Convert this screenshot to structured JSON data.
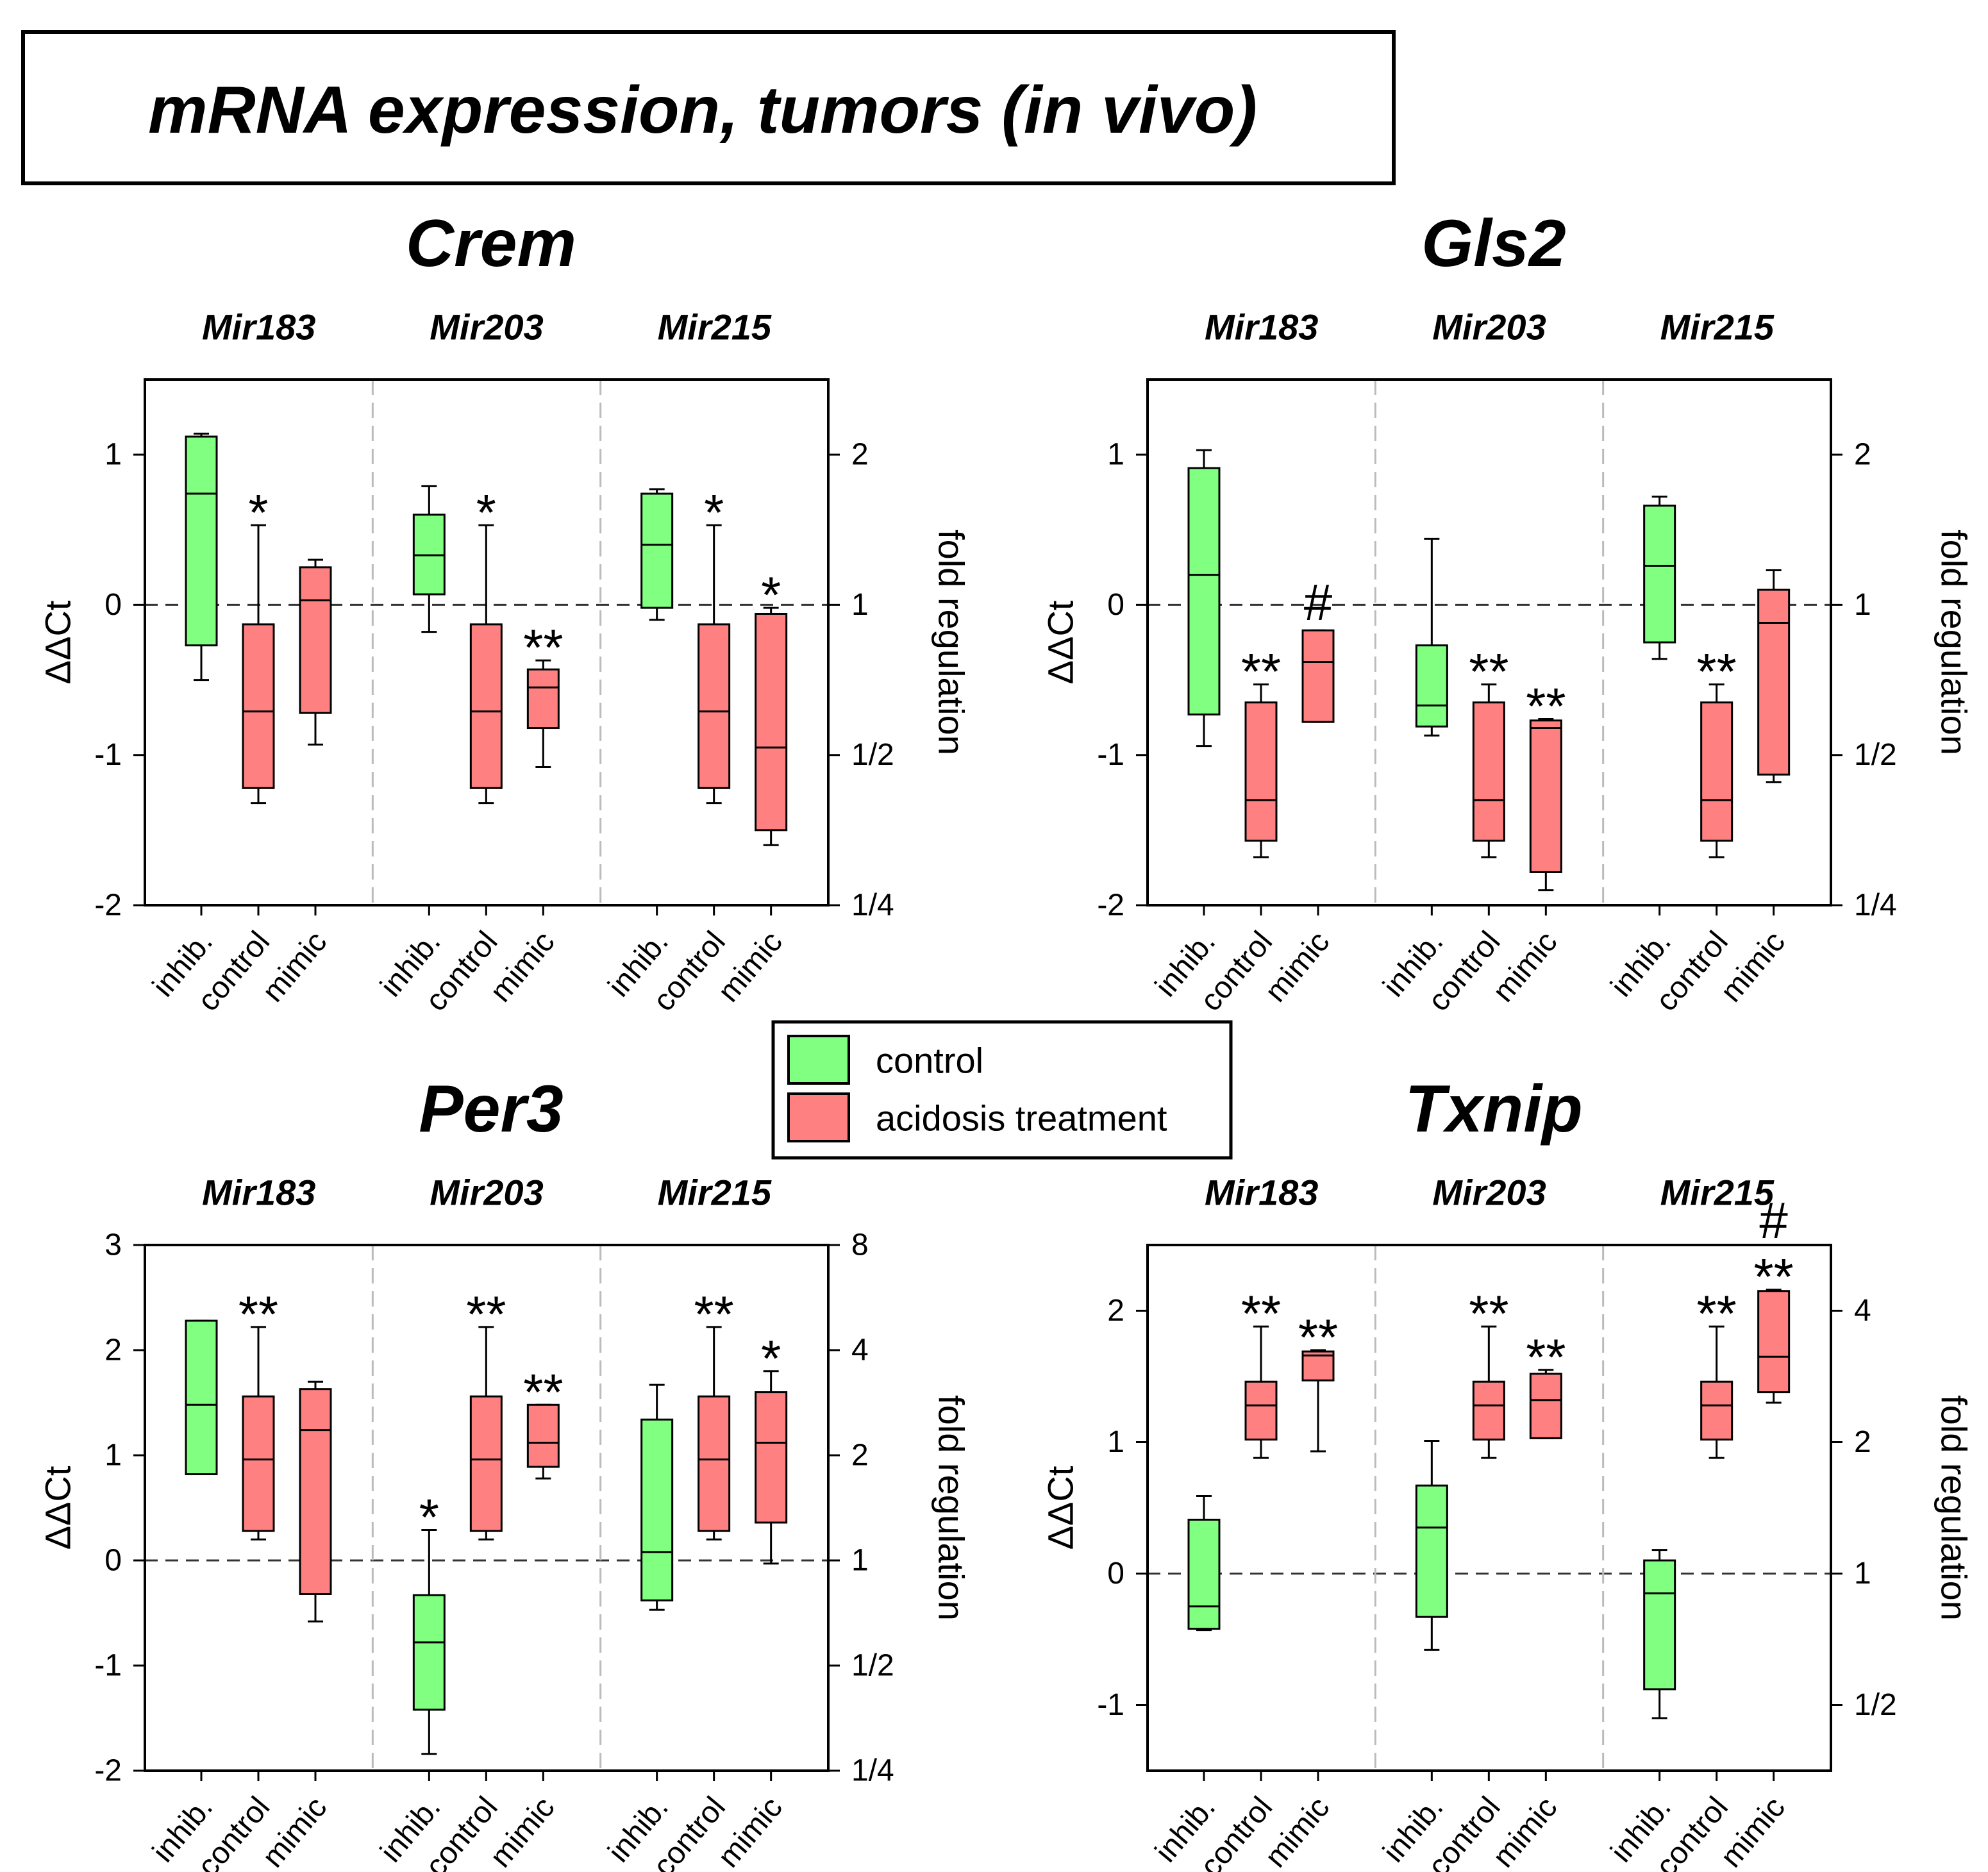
{
  "title": "mRNA expression, tumors (in vivo)",
  "legend": [
    {
      "name": "control",
      "color": "#80ff80"
    },
    {
      "name": "acidosis treatment",
      "color": "#ff8080"
    }
  ],
  "chart_data": [
    {
      "type": "box",
      "title": "Crem",
      "ylabel": "ΔΔCt",
      "y2label": "fold regulation",
      "ylim": [
        -2,
        1.5
      ],
      "yticks": [
        -2,
        -1,
        0,
        1
      ],
      "y2log": true,
      "y2lim": [
        0.25,
        2.828
      ],
      "y2ticks": [
        {
          "value": 0.25,
          "label": "1/4"
        },
        {
          "value": 0.5,
          "label": "1/2"
        },
        1,
        2
      ],
      "groups": [
        {
          "name": "Mir183",
          "categories": [
            "inhib.",
            "control",
            "mimic"
          ],
          "boxes": [
            {
              "series": 0,
              "whishi": 1.14,
              "q3": 1.12,
              "median": 0.74,
              "q1": -0.27,
              "whislo": -0.5
            },
            {
              "series": 1,
              "whishi": 0.53,
              "q3": -0.13,
              "median": -0.71,
              "q1": -1.22,
              "whislo": -1.32,
              "annotations": [
                "*"
              ]
            },
            {
              "series": 1,
              "whishi": 0.3,
              "q3": 0.25,
              "median": 0.03,
              "q1": -0.72,
              "whislo": -0.93
            }
          ]
        },
        {
          "name": "Mir203",
          "categories": [
            "inhib.",
            "control",
            "mimic"
          ],
          "boxes": [
            {
              "series": 0,
              "whishi": 0.79,
              "q3": 0.6,
              "median": 0.33,
              "q1": 0.07,
              "whislo": -0.18
            },
            {
              "series": 1,
              "whishi": 0.53,
              "q3": -0.13,
              "median": -0.71,
              "q1": -1.22,
              "whislo": -1.32,
              "annotations": [
                "*"
              ]
            },
            {
              "series": 1,
              "whishi": -0.37,
              "q3": -0.43,
              "median": -0.55,
              "q1": -0.82,
              "whislo": -1.08,
              "annotations": [
                "**"
              ]
            }
          ]
        },
        {
          "name": "Mir215",
          "categories": [
            "inhib.",
            "control",
            "mimic"
          ],
          "boxes": [
            {
              "series": 0,
              "whishi": 0.77,
              "q3": 0.74,
              "median": 0.4,
              "q1": -0.02,
              "whislo": -0.1
            },
            {
              "series": 1,
              "whishi": 0.53,
              "q3": -0.13,
              "median": -0.71,
              "q1": -1.22,
              "whislo": -1.32,
              "annotations": [
                "*"
              ]
            },
            {
              "series": 1,
              "whishi": -0.02,
              "q3": -0.06,
              "median": -0.95,
              "q1": -1.5,
              "whislo": -1.6,
              "annotations": [
                "*"
              ]
            }
          ]
        }
      ]
    },
    {
      "type": "box",
      "title": "Gls2",
      "ylabel": "ΔΔCt",
      "y2label": "fold regulation",
      "ylim": [
        -2,
        1.5
      ],
      "yticks": [
        -2,
        -1,
        0,
        1
      ],
      "y2log": true,
      "y2lim": [
        0.25,
        2.828
      ],
      "y2ticks": [
        {
          "value": 0.25,
          "label": "1/4"
        },
        {
          "value": 0.5,
          "label": "1/2"
        },
        1,
        2
      ],
      "groups": [
        {
          "name": "Mir183",
          "categories": [
            "inhib.",
            "control",
            "mimic"
          ],
          "boxes": [
            {
              "series": 0,
              "whishi": 1.03,
              "q3": 0.91,
              "median": 0.2,
              "q1": -0.73,
              "whislo": -0.94
            },
            {
              "series": 1,
              "whishi": -0.53,
              "q3": -0.65,
              "median": -1.3,
              "q1": -1.57,
              "whislo": -1.68,
              "annotations": [
                "**"
              ]
            },
            {
              "series": 1,
              "whishi": -0.17,
              "q3": -0.17,
              "median": -0.38,
              "q1": -0.78,
              "whislo": -0.78,
              "annotations": [
                "#"
              ]
            }
          ]
        },
        {
          "name": "Mir203",
          "categories": [
            "inhib.",
            "control",
            "mimic"
          ],
          "boxes": [
            {
              "series": 0,
              "whishi": 0.44,
              "q3": -0.27,
              "median": -0.67,
              "q1": -0.81,
              "whislo": -0.87
            },
            {
              "series": 1,
              "whishi": -0.53,
              "q3": -0.65,
              "median": -1.3,
              "q1": -1.57,
              "whislo": -1.68,
              "annotations": [
                "**"
              ]
            },
            {
              "series": 1,
              "whishi": -0.76,
              "q3": -0.77,
              "median": -0.82,
              "q1": -1.78,
              "whislo": -1.9,
              "annotations": [
                "**"
              ]
            }
          ]
        },
        {
          "name": "Mir215",
          "categories": [
            "inhib.",
            "control",
            "mimic"
          ],
          "boxes": [
            {
              "series": 0,
              "whishi": 0.72,
              "q3": 0.66,
              "median": 0.26,
              "q1": -0.25,
              "whislo": -0.36
            },
            {
              "series": 1,
              "whishi": -0.53,
              "q3": -0.65,
              "median": -1.3,
              "q1": -1.57,
              "whislo": -1.68,
              "annotations": [
                "**"
              ]
            },
            {
              "series": 1,
              "whishi": 0.23,
              "q3": 0.1,
              "median": -0.12,
              "q1": -1.13,
              "whislo": -1.18
            }
          ]
        }
      ]
    },
    {
      "type": "box",
      "title": "Per3",
      "ylabel": "ΔΔCt",
      "y2label": "fold regulation",
      "ylim": [
        -2,
        3
      ],
      "yticks": [
        -2,
        -1,
        0,
        1,
        2,
        3
      ],
      "y2log": true,
      "y2lim": [
        0.25,
        8
      ],
      "y2ticks": [
        {
          "value": 0.25,
          "label": "1/4"
        },
        {
          "value": 0.5,
          "label": "1/2"
        },
        1,
        2,
        4,
        8
      ],
      "groups": [
        {
          "name": "Mir183",
          "categories": [
            "inhib.",
            "control",
            "mimic"
          ],
          "boxes": [
            {
              "series": 0,
              "whishi": 2.28,
              "q3": 2.28,
              "median": 1.48,
              "q1": 0.82,
              "whislo": 0.82
            },
            {
              "series": 1,
              "whishi": 2.22,
              "q3": 1.56,
              "median": 0.96,
              "q1": 0.28,
              "whislo": 0.2,
              "annotations": [
                "**"
              ]
            },
            {
              "series": 1,
              "whishi": 1.7,
              "q3": 1.63,
              "median": 1.24,
              "q1": -0.32,
              "whislo": -0.58
            }
          ]
        },
        {
          "name": "Mir203",
          "categories": [
            "inhib.",
            "control",
            "mimic"
          ],
          "boxes": [
            {
              "series": 0,
              "whishi": 0.29,
              "q3": -0.33,
              "median": -0.78,
              "q1": -1.42,
              "whislo": -1.84,
              "annotations": [
                "*"
              ]
            },
            {
              "series": 1,
              "whishi": 2.22,
              "q3": 1.56,
              "median": 0.96,
              "q1": 0.28,
              "whislo": 0.2,
              "annotations": [
                "**"
              ]
            },
            {
              "series": 1,
              "whishi": 1.48,
              "q3": 1.48,
              "median": 1.12,
              "q1": 0.89,
              "whislo": 0.78,
              "annotations": [
                "**"
              ]
            }
          ]
        },
        {
          "name": "Mir215",
          "categories": [
            "inhib.",
            "control",
            "mimic"
          ],
          "boxes": [
            {
              "series": 0,
              "whishi": 1.67,
              "q3": 1.34,
              "median": 0.08,
              "q1": -0.38,
              "whislo": -0.47
            },
            {
              "series": 1,
              "whishi": 2.22,
              "q3": 1.56,
              "median": 0.96,
              "q1": 0.28,
              "whislo": 0.2,
              "annotations": [
                "**"
              ]
            },
            {
              "series": 1,
              "whishi": 1.8,
              "q3": 1.6,
              "median": 1.12,
              "q1": 0.36,
              "whislo": -0.03,
              "annotations": [
                "*"
              ]
            }
          ]
        }
      ]
    },
    {
      "type": "box",
      "title": "Txnip",
      "ylabel": "ΔΔCt",
      "y2label": "fold regulation",
      "ylim": [
        -1.5,
        2.5
      ],
      "yticks": [
        -1,
        0,
        1,
        2
      ],
      "y2log": true,
      "y2lim": [
        0.3536,
        5.657
      ],
      "y2ticks": [
        {
          "value": 0.5,
          "label": "1/2"
        },
        1,
        2,
        4
      ],
      "groups": [
        {
          "name": "Mir183",
          "categories": [
            "inhib.",
            "control",
            "mimic"
          ],
          "boxes": [
            {
              "series": 0,
              "whishi": 0.59,
              "q3": 0.41,
              "median": -0.25,
              "q1": -0.42,
              "whislo": -0.43
            },
            {
              "series": 1,
              "whishi": 1.88,
              "q3": 1.46,
              "median": 1.28,
              "q1": 1.02,
              "whislo": 0.88,
              "annotations": [
                "**"
              ]
            },
            {
              "series": 1,
              "whishi": 1.7,
              "q3": 1.69,
              "median": 1.66,
              "q1": 1.47,
              "whislo": 0.93,
              "annotations": [
                "**"
              ]
            }
          ]
        },
        {
          "name": "Mir203",
          "categories": [
            "inhib.",
            "control",
            "mimic"
          ],
          "boxes": [
            {
              "series": 0,
              "whishi": 1.01,
              "q3": 0.67,
              "median": 0.35,
              "q1": -0.33,
              "whislo": -0.58
            },
            {
              "series": 1,
              "whishi": 1.88,
              "q3": 1.46,
              "median": 1.28,
              "q1": 1.02,
              "whislo": 0.88,
              "annotations": [
                "**"
              ]
            },
            {
              "series": 1,
              "whishi": 1.55,
              "q3": 1.52,
              "median": 1.32,
              "q1": 1.03,
              "whislo": 1.03,
              "annotations": [
                "**"
              ]
            }
          ]
        },
        {
          "name": "Mir215",
          "categories": [
            "inhib.",
            "control",
            "mimic"
          ],
          "boxes": [
            {
              "series": 0,
              "whishi": 0.18,
              "q3": 0.1,
              "median": -0.15,
              "q1": -0.88,
              "whislo": -1.1
            },
            {
              "series": 1,
              "whishi": 1.88,
              "q3": 1.46,
              "median": 1.28,
              "q1": 1.02,
              "whislo": 0.88,
              "annotations": [
                "**"
              ]
            },
            {
              "series": 1,
              "whishi": 2.16,
              "q3": 2.15,
              "median": 1.65,
              "q1": 1.38,
              "whislo": 1.3,
              "annotations": [
                "#",
                "**"
              ]
            }
          ]
        }
      ]
    }
  ]
}
